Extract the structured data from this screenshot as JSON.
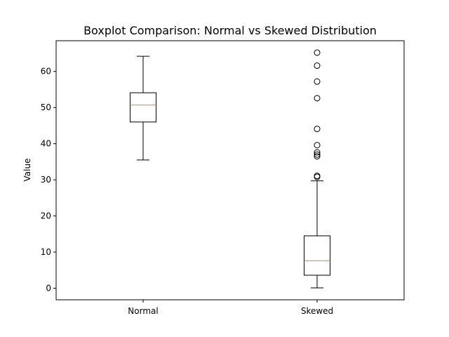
{
  "chart_data": {
    "type": "boxplot",
    "title": "Boxplot Comparison: Normal vs Skewed Distribution",
    "xlabel": "",
    "ylabel": "Value",
    "ylim": [
      -3.2,
      68.5
    ],
    "yticks": [
      0,
      10,
      20,
      30,
      40,
      50,
      60
    ],
    "grid": false,
    "categories": [
      "Normal",
      "Skewed"
    ],
    "boxes": [
      {
        "name": "Normal",
        "whisker_low": 35.5,
        "q1": 46.0,
        "median": 50.7,
        "q3": 54.1,
        "whisker_high": 64.2,
        "outliers": []
      },
      {
        "name": "Skewed",
        "whisker_low": 0.1,
        "q1": 3.6,
        "median": 7.6,
        "q3": 14.5,
        "whisker_high": 29.7,
        "outliers": [
          30.8,
          31.1,
          36.5,
          37.0,
          37.6,
          39.6,
          44.1,
          52.6,
          57.2,
          61.6,
          65.2
        ]
      }
    ],
    "colors": {
      "box": "#000000",
      "median": "#ff7f0e",
      "outlier": "#000000"
    }
  }
}
